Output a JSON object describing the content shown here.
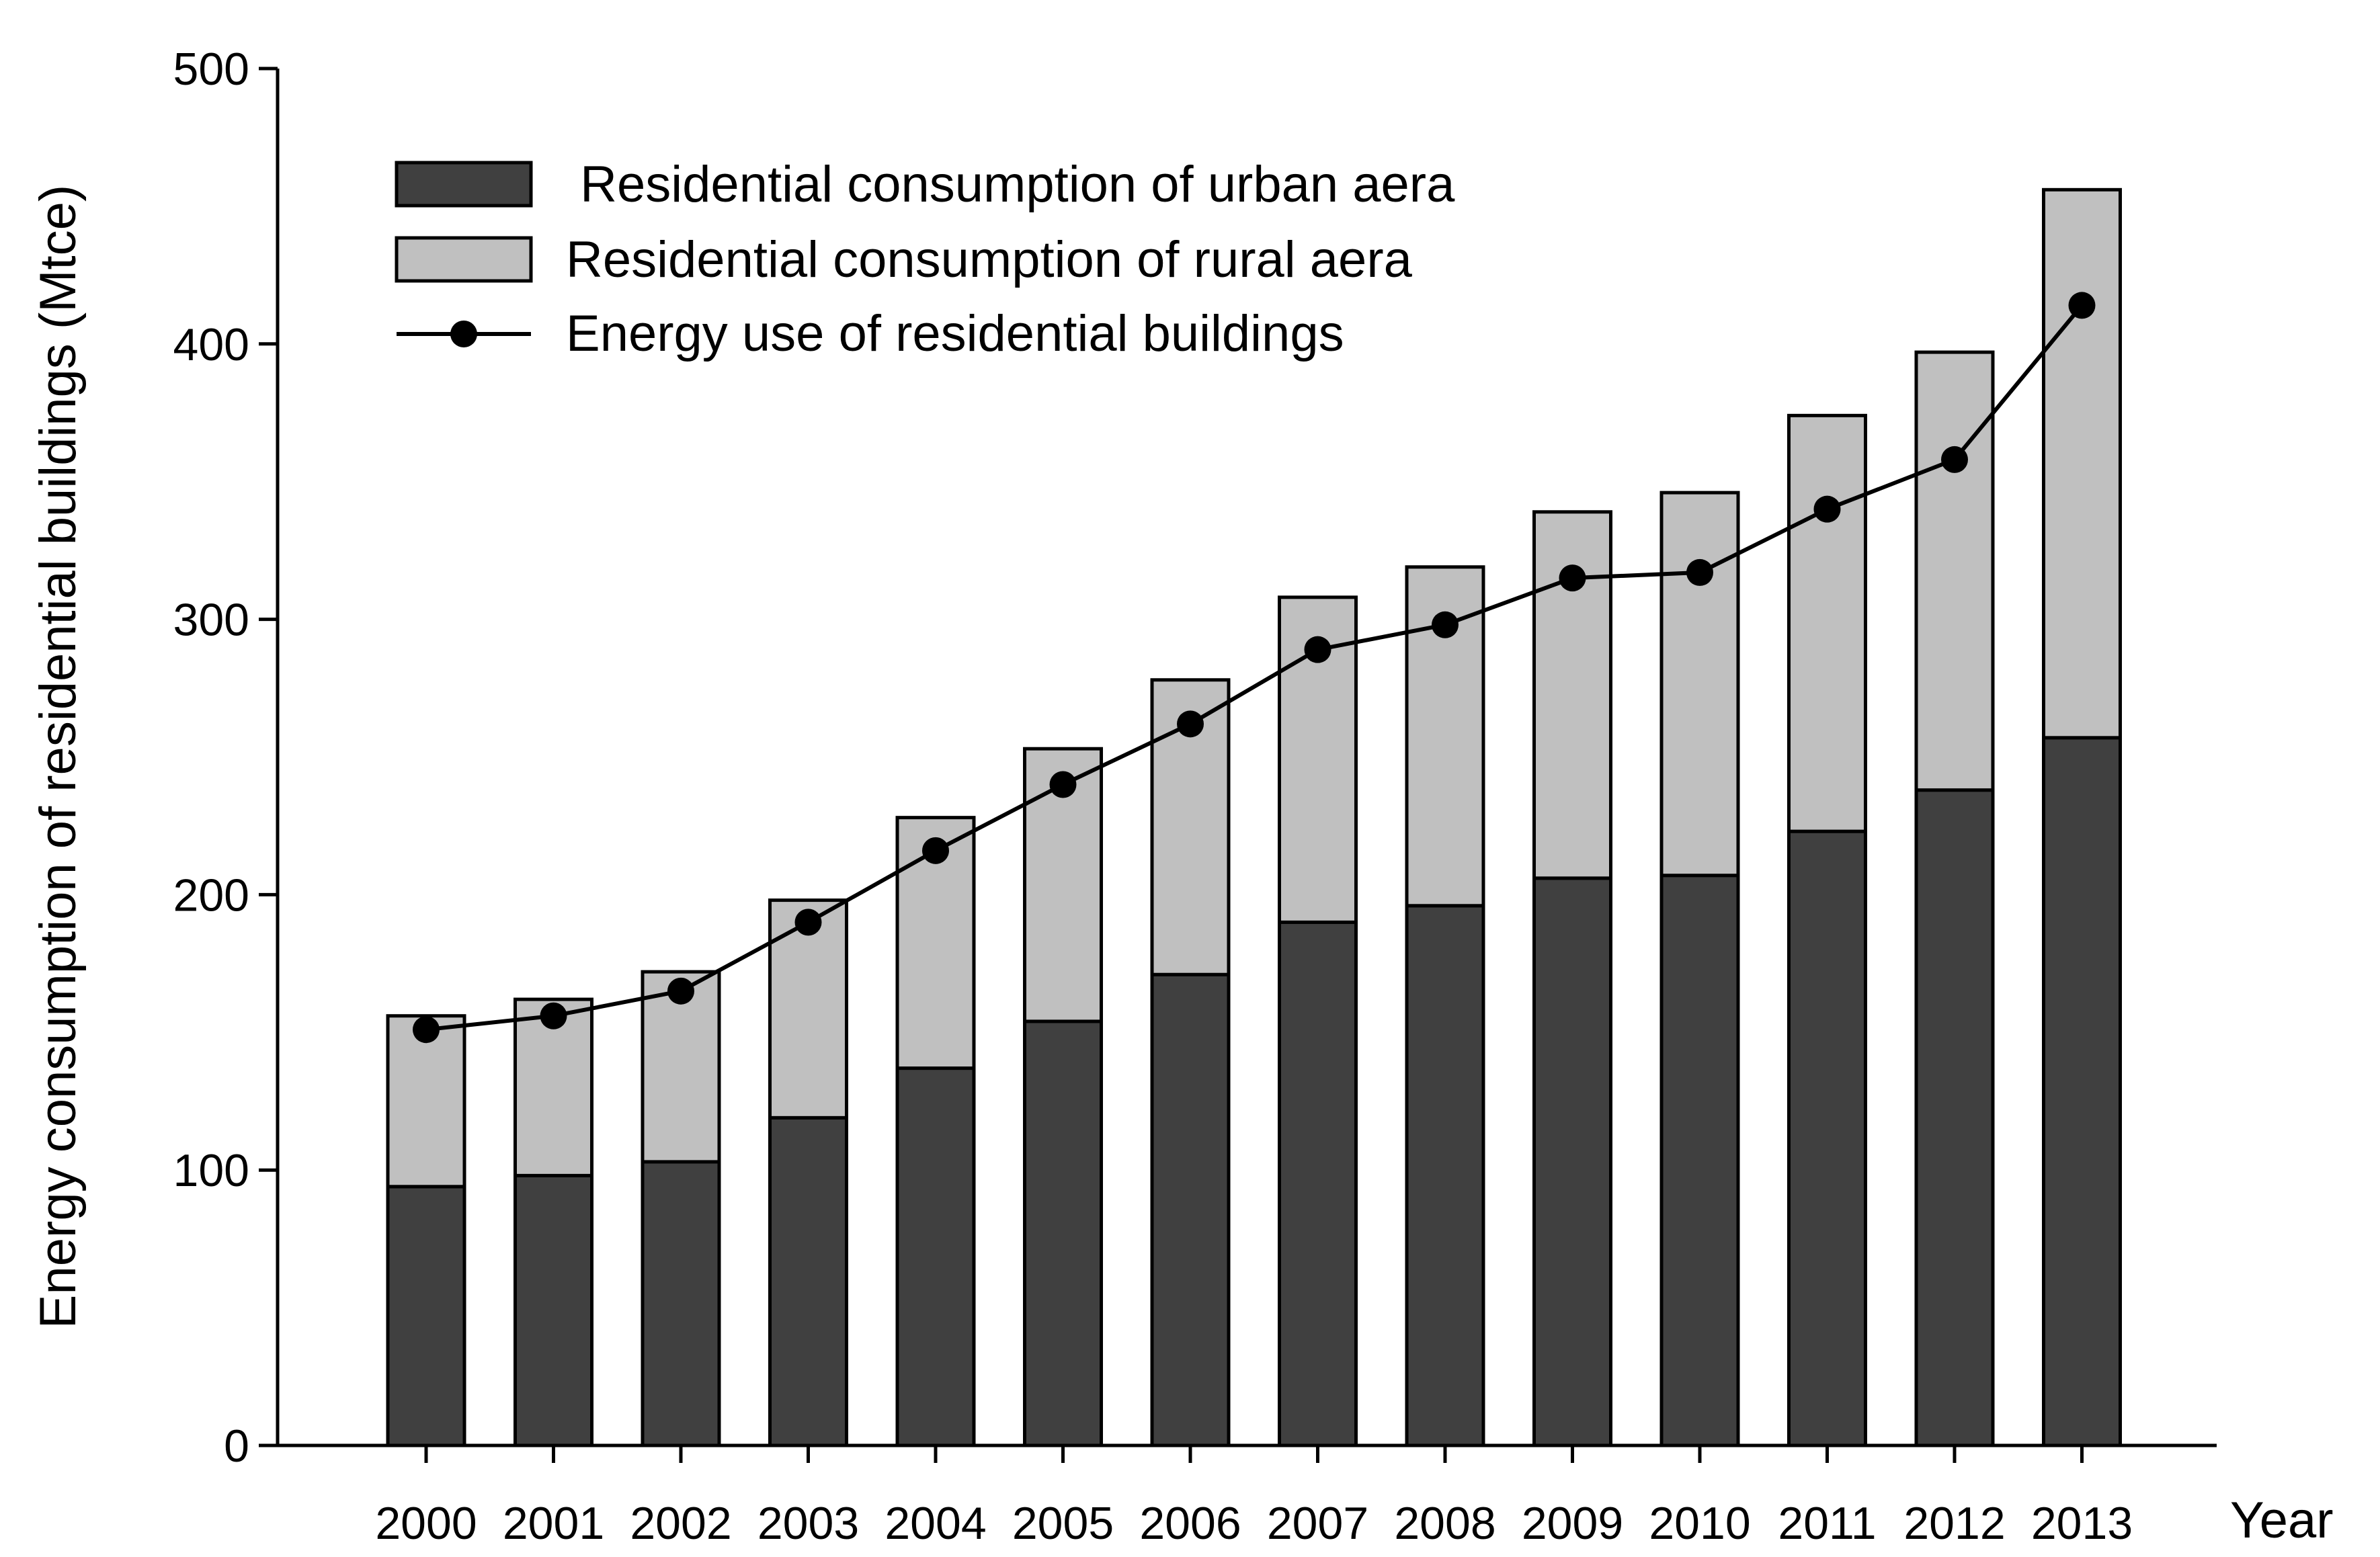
{
  "chart_data": {
    "type": "bar",
    "stacked": true,
    "title": "",
    "xlabel": "Year",
    "ylabel": "Energy consumption of residential buildings (Mtce)",
    "ylim": [
      0,
      500
    ],
    "yticks": [
      0,
      100,
      200,
      300,
      400,
      500
    ],
    "categories": [
      "2000",
      "2001",
      "2002",
      "2003",
      "2004",
      "2005",
      "2006",
      "2007",
      "2008",
      "2009",
      "2010",
      "2011",
      "2012",
      "2013"
    ],
    "series": [
      {
        "name": " Residential consumption of urban aera",
        "kind": "bar",
        "color": "#404040",
        "values": [
          94,
          98,
          103,
          119,
          137,
          154,
          171,
          190,
          196,
          206,
          207,
          223,
          238,
          257
        ]
      },
      {
        "name": "Residential consumption of rural aera",
        "kind": "bar",
        "color": "#c0c0c0",
        "values": [
          62,
          64,
          69,
          79,
          91,
          99,
          107,
          118,
          123,
          133,
          139,
          151,
          159,
          199
        ]
      },
      {
        "name": "Energy use of residential buildings",
        "kind": "line",
        "color": "#000000",
        "values": [
          151,
          156,
          165,
          190,
          216,
          240,
          262,
          289,
          298,
          315,
          317,
          340,
          358,
          414
        ]
      }
    ],
    "grid": false,
    "legend_position": "top-left"
  }
}
